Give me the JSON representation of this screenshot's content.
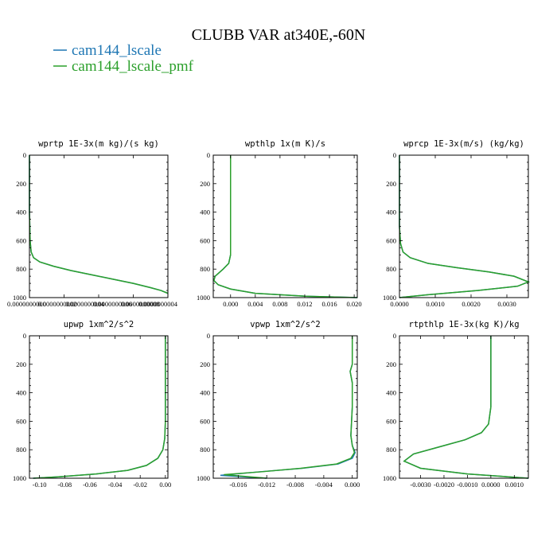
{
  "figure": {
    "title": "CLUBB VAR at340E,-60N",
    "legend": [
      {
        "label": "cam144_lscale",
        "color": "#1f77b4"
      },
      {
        "label": "cam144_lscale_pmf",
        "color": "#2ca02c"
      }
    ]
  },
  "chart_data": [
    {
      "type": "line",
      "title": "wprtp  1E-3x(m kg)/(s kg)",
      "xlim": [
        0,
        4e-10
      ],
      "ylim": [
        1000,
        0
      ],
      "xticks": [
        0,
        1e-10,
        2e-10,
        3e-10,
        4e-10
      ],
      "xtick_labels": [
        "0.0000000000",
        "0.0000000002",
        "0.0000000004",
        "0.0000000006",
        "0.0000000008",
        "0.0000000004"
      ],
      "xtick_label_positions": [
        0,
        8e-11,
        1.6e-10,
        2.4e-10,
        3.2e-10,
        4e-10
      ],
      "yticks": [
        0,
        200,
        400,
        600,
        800,
        1000
      ],
      "series": [
        {
          "name": "cam144_lscale",
          "x": [
            0.0,
            0.0,
            0.0,
            2e-12,
            5e-12,
            1.2e-11,
            3e-11,
            7e-11,
            1.2e-10,
            1.8e-10,
            2.4e-10,
            3e-10,
            3.5e-10,
            3.8e-10,
            4e-10
          ],
          "y": [
            0,
            200,
            400,
            600,
            680,
            720,
            750,
            780,
            810,
            840,
            870,
            900,
            930,
            950,
            970
          ]
        },
        {
          "name": "cam144_lscale_pmf",
          "x": [
            0.0,
            0.0,
            0.0,
            2e-12,
            5e-12,
            1.2e-11,
            3e-11,
            7e-11,
            1.2e-10,
            1.8e-10,
            2.4e-10,
            3e-10,
            3.5e-10,
            3.8e-10,
            4e-10
          ],
          "y": [
            0,
            200,
            400,
            600,
            680,
            720,
            750,
            780,
            810,
            840,
            870,
            900,
            930,
            950,
            970
          ]
        }
      ]
    },
    {
      "type": "line",
      "title": "wpthlp  1x(m K)/s",
      "xlim": [
        -0.0028,
        0.0205
      ],
      "ylim": [
        1000,
        0
      ],
      "xticks": [
        0.0,
        0.004,
        0.008,
        0.012,
        0.016,
        0.02
      ],
      "xtick_labels": [
        "0.000",
        "0.004",
        "0.008",
        "0.012",
        "0.016",
        "0.020"
      ],
      "yticks": [
        0,
        200,
        400,
        600,
        800,
        1000
      ],
      "series": [
        {
          "name": "cam144_lscale",
          "x": [
            0.0,
            0.0,
            0.0,
            0.0,
            -0.0003,
            -0.0012,
            -0.0025,
            -0.0027,
            -0.002,
            0.0,
            0.004,
            0.012,
            0.0205
          ],
          "y": [
            0,
            300,
            500,
            700,
            760,
            800,
            850,
            880,
            910,
            940,
            970,
            990,
            1000
          ]
        },
        {
          "name": "cam144_lscale_pmf",
          "x": [
            0.0,
            0.0,
            0.0,
            0.0,
            -0.0003,
            -0.0012,
            -0.0025,
            -0.0027,
            -0.002,
            0.0,
            0.004,
            0.012,
            0.0205
          ],
          "y": [
            0,
            300,
            500,
            700,
            760,
            800,
            850,
            880,
            910,
            940,
            970,
            990,
            1000
          ]
        }
      ]
    },
    {
      "type": "line",
      "title": "wprcp  1E-3x(m/s) (kg/kg)",
      "xlim": [
        0,
        0.0036
      ],
      "ylim": [
        1000,
        0
      ],
      "xticks": [
        0.0,
        0.001,
        0.002,
        0.003
      ],
      "xtick_labels": [
        "0.0000",
        "0.0010",
        "0.0020",
        "0.0030"
      ],
      "yticks": [
        0,
        200,
        400,
        600,
        800,
        1000
      ],
      "series": [
        {
          "name": "cam144_lscale",
          "x": [
            0.0,
            0.0,
            0.0,
            3e-05,
            0.0001,
            0.0003,
            0.0008,
            0.0016,
            0.0025,
            0.0032,
            0.0036,
            0.0033,
            0.0022,
            0.0008,
            0.0
          ],
          "y": [
            0,
            300,
            500,
            620,
            680,
            720,
            760,
            790,
            820,
            850,
            890,
            920,
            950,
            980,
            1000
          ]
        },
        {
          "name": "cam144_lscale_pmf",
          "x": [
            0.0,
            0.0,
            0.0,
            3e-05,
            0.0001,
            0.0003,
            0.0008,
            0.0016,
            0.0025,
            0.0032,
            0.0036,
            0.0033,
            0.0022,
            0.0008,
            0.0
          ],
          "y": [
            0,
            300,
            500,
            620,
            680,
            720,
            760,
            790,
            820,
            850,
            890,
            920,
            950,
            980,
            1000
          ]
        }
      ]
    },
    {
      "type": "line",
      "title": "upwp  1xm^2/s^2",
      "xlim": [
        -0.108,
        0.002
      ],
      "ylim": [
        1000,
        0
      ],
      "xticks": [
        -0.1,
        -0.08,
        -0.06,
        -0.04,
        -0.02,
        0.0
      ],
      "xtick_labels": [
        "-0.10",
        "-0.08",
        "-0.06",
        "-0.04",
        "-0.02",
        "0.00"
      ],
      "yticks": [
        0,
        200,
        400,
        600,
        800,
        1000
      ],
      "series": [
        {
          "name": "cam144_lscale",
          "x": [
            0.0,
            0.0,
            0.0,
            -0.0005,
            -0.002,
            -0.006,
            -0.015,
            -0.03,
            -0.055,
            -0.085,
            -0.105
          ],
          "y": [
            0,
            300,
            600,
            720,
            800,
            860,
            910,
            945,
            970,
            990,
            1000
          ]
        },
        {
          "name": "cam144_lscale_pmf",
          "x": [
            0.0,
            0.0,
            0.0,
            -0.0005,
            -0.002,
            -0.006,
            -0.015,
            -0.03,
            -0.055,
            -0.085,
            -0.105
          ],
          "y": [
            0,
            300,
            600,
            720,
            800,
            860,
            910,
            945,
            970,
            990,
            1000
          ]
        }
      ]
    },
    {
      "type": "line",
      "title": "vpwp  1xm^2/s^2",
      "xlim": [
        -0.0195,
        0.0007
      ],
      "ylim": [
        1000,
        0
      ],
      "xticks": [
        -0.016,
        -0.012,
        -0.008,
        -0.004,
        0.0
      ],
      "xtick_labels": [
        "-0.016",
        "-0.012",
        "-0.008",
        "-0.004",
        "0.000"
      ],
      "yticks": [
        0,
        200,
        400,
        600,
        800,
        1000
      ],
      "series": [
        {
          "name": "cam144_lscale",
          "x": [
            0.0,
            0.0,
            -0.0003,
            0.0,
            0.0,
            -0.0002,
            0.0,
            0.0004,
            0.0,
            -0.002,
            -0.007,
            -0.013,
            -0.0185,
            -0.012
          ],
          "y": [
            0,
            200,
            250,
            330,
            500,
            700,
            770,
            820,
            860,
            900,
            930,
            955,
            980,
            1000
          ]
        },
        {
          "name": "cam144_lscale_pmf",
          "x": [
            0.0,
            0.0,
            -0.0003,
            0.0,
            0.0,
            -0.0002,
            0.0,
            0.0003,
            -0.0002,
            -0.0022,
            -0.0072,
            -0.0128,
            -0.018,
            -0.012
          ],
          "y": [
            0,
            200,
            250,
            330,
            500,
            700,
            770,
            820,
            860,
            900,
            930,
            955,
            975,
            1000
          ]
        }
      ]
    },
    {
      "type": "line",
      "title": "rtpthlp  1E-3x(kg K)/kg",
      "xlim": [
        -0.0039,
        0.0016
      ],
      "ylim": [
        1000,
        0
      ],
      "xticks": [
        -0.003,
        -0.002,
        -0.001,
        0.0,
        0.001
      ],
      "xtick_labels": [
        "-0.0030",
        "-0.0020",
        "-0.0010",
        "0.0000",
        "0.0010"
      ],
      "yticks": [
        0,
        200,
        400,
        600,
        800,
        1000
      ],
      "series": [
        {
          "name": "cam144_lscale",
          "x": [
            0.0,
            0.0,
            0.0,
            -0.0001,
            -0.0004,
            -0.0011,
            -0.0022,
            -0.0033,
            -0.0037,
            -0.003,
            -0.001,
            0.0016
          ],
          "y": [
            0,
            300,
            500,
            620,
            680,
            730,
            780,
            830,
            880,
            930,
            970,
            1000
          ]
        },
        {
          "name": "cam144_lscale_pmf",
          "x": [
            0.0,
            0.0,
            0.0,
            -0.0001,
            -0.0004,
            -0.0011,
            -0.0022,
            -0.0033,
            -0.0037,
            -0.003,
            -0.001,
            0.0016
          ],
          "y": [
            0,
            300,
            500,
            620,
            680,
            730,
            780,
            830,
            880,
            930,
            970,
            1000
          ]
        }
      ]
    }
  ]
}
